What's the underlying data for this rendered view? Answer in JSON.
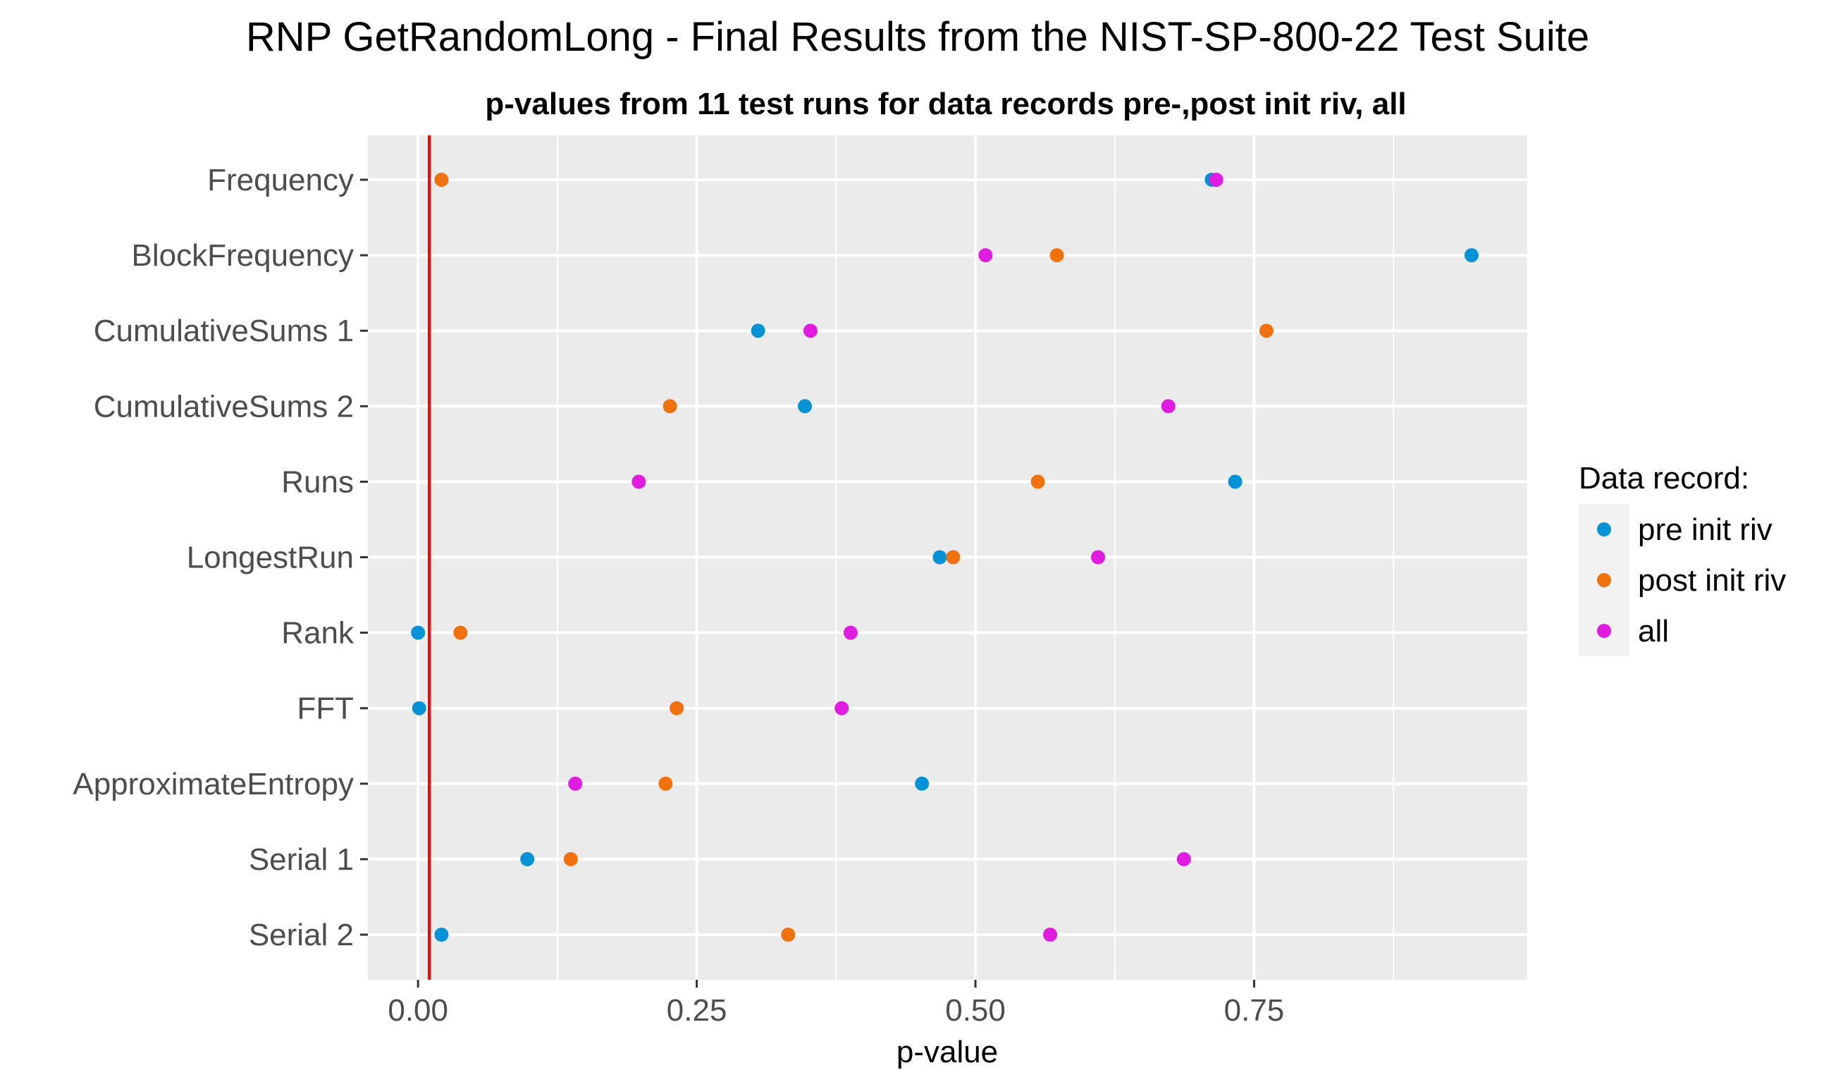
{
  "chart_data": {
    "type": "scatter",
    "title": "RNP GetRandomLong - Final Results from the NIST-SP-800-22 Test Suite",
    "subtitle": "p-values from 11 test runs for data records pre-,post init riv, all",
    "xlabel": "p-value",
    "ylabel": "",
    "xlim": [
      -0.045,
      0.995
    ],
    "xticks": [
      0.0,
      0.25,
      0.5,
      0.75
    ],
    "xtick_labels": [
      "0.00",
      "0.25",
      "0.50",
      "0.75"
    ],
    "reference_line": {
      "x": 0.01,
      "color": "#ff0000"
    },
    "grid": true,
    "legend": {
      "title": "Data record:",
      "placement": "right"
    },
    "categories": [
      "Frequency",
      "BlockFrequency",
      "CumulativeSums 1",
      "CumulativeSums 2",
      "Runs",
      "LongestRun",
      "Rank",
      "FFT",
      "ApproximateEntropy",
      "Serial 1",
      "Serial 2"
    ],
    "series": [
      {
        "name": "pre init riv",
        "color": "#0592d6",
        "values": [
          0.712,
          0.945,
          0.305,
          0.347,
          0.733,
          0.468,
          0.0,
          0.001,
          0.452,
          0.098,
          0.021
        ]
      },
      {
        "name": "post init riv",
        "color": "#f2710f",
        "values": [
          0.021,
          0.573,
          0.761,
          0.226,
          0.556,
          0.48,
          0.038,
          0.232,
          0.222,
          0.137,
          0.332
        ]
      },
      {
        "name": "all",
        "color": "#e01ce0",
        "values": [
          0.716,
          0.509,
          0.352,
          0.673,
          0.198,
          0.61,
          0.388,
          0.38,
          0.141,
          0.687,
          0.567
        ]
      }
    ]
  }
}
